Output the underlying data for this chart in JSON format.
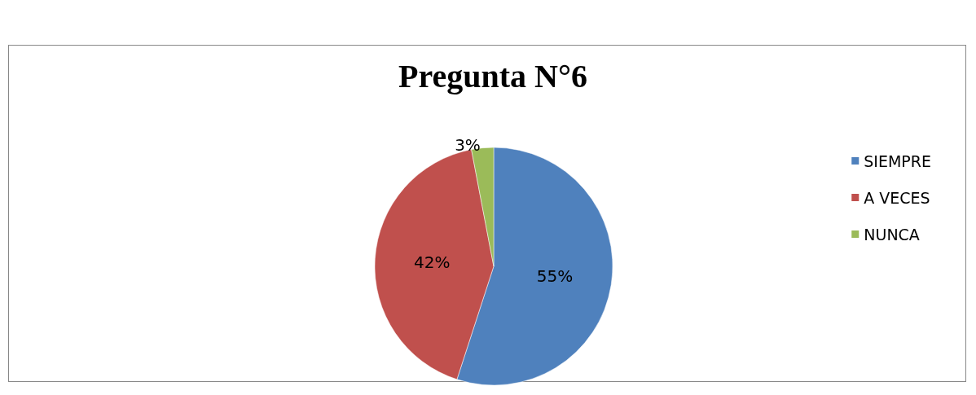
{
  "chart_data": {
    "type": "pie",
    "title": "Pregunta N°6",
    "categories": [
      "SIEMPRE",
      "A VECES",
      "NUNCA"
    ],
    "values": [
      55,
      42,
      3
    ],
    "colors": [
      "#4f81bd",
      "#c0504d",
      "#9bbb59"
    ],
    "value_labels": [
      "55%",
      "42%",
      "3%"
    ],
    "legend": "right"
  }
}
